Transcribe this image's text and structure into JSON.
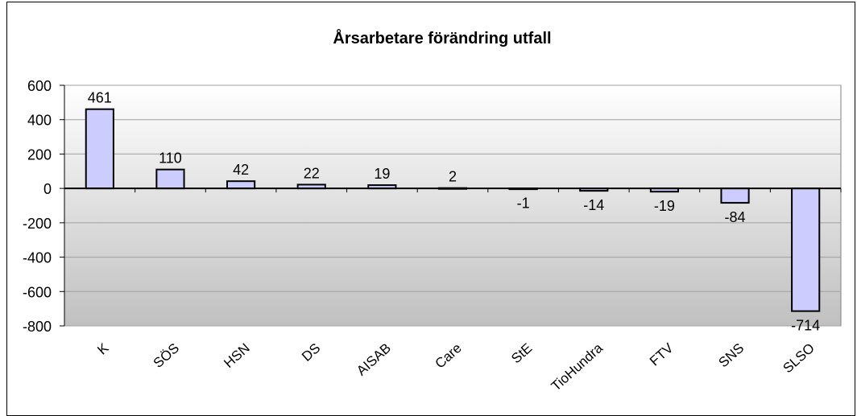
{
  "chart_data": {
    "type": "bar",
    "title": "Årsarbetare förändring utfall",
    "categories": [
      "K",
      "SÖS",
      "HSN",
      "DS",
      "AISAB",
      "Care",
      "StE",
      "TioHundra",
      "FTV",
      "SNS",
      "SLSO"
    ],
    "values": [
      461,
      110,
      42,
      22,
      19,
      2,
      -1,
      -14,
      -19,
      -84,
      -714
    ],
    "value_labels": [
      "461",
      "110",
      "42",
      "22",
      "19",
      "2",
      "-1",
      "-14",
      "-19",
      "-84",
      "-714"
    ],
    "y_ticks": [
      "600",
      "400",
      "200",
      "0",
      "-200",
      "-400",
      "-600",
      "-800"
    ],
    "ylim": [
      -800,
      600
    ],
    "xlabel": "",
    "ylabel": "",
    "grid": true,
    "legend": "none",
    "colors": {
      "bar_fill": "#CCCCFF",
      "bar_stroke": "#000000",
      "plot_bg_top": "#FFFFFF",
      "plot_bg_bottom": "#C0C0C0",
      "grid": "#A0A0A0"
    }
  }
}
